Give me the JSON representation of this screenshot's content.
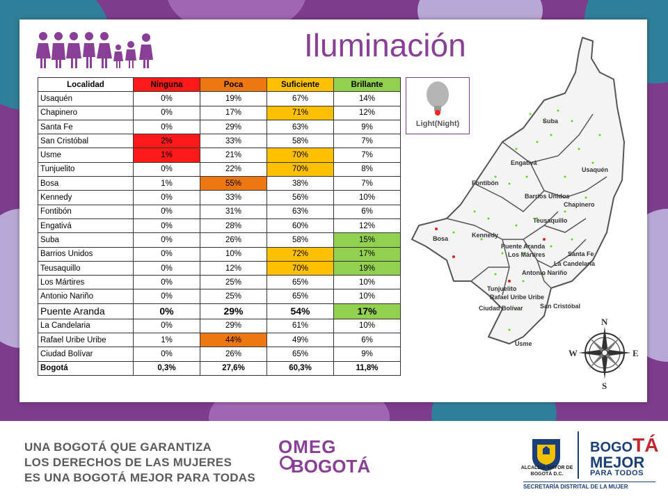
{
  "title": "Iluminación",
  "table": {
    "headers": [
      "Localidad",
      "Ninguna",
      "Poca",
      "Suficiente",
      "Brillante"
    ],
    "rows": [
      {
        "name": "Usaquén",
        "ninguna": "0%",
        "poca": "19%",
        "suficiente": "67%",
        "brillante": "14%"
      },
      {
        "name": "Chapinero",
        "ninguna": "0%",
        "poca": "17%",
        "suficiente": "71%",
        "brillante": "12%"
      },
      {
        "name": "Santa Fe",
        "ninguna": "0%",
        "poca": "29%",
        "suficiente": "63%",
        "brillante": "9%"
      },
      {
        "name": "San Cristóbal",
        "ninguna": "2%",
        "poca": "33%",
        "suficiente": "58%",
        "brillante": "7%"
      },
      {
        "name": "Usme",
        "ninguna": "1%",
        "poca": "21%",
        "suficiente": "70%",
        "brillante": "7%"
      },
      {
        "name": "Tunjuelito",
        "ninguna": "0%",
        "poca": "22%",
        "suficiente": "70%",
        "brillante": "8%"
      },
      {
        "name": "Bosa",
        "ninguna": "1%",
        "poca": "55%",
        "suficiente": "38%",
        "brillante": "7%"
      },
      {
        "name": "Kennedy",
        "ninguna": "0%",
        "poca": "33%",
        "suficiente": "56%",
        "brillante": "10%"
      },
      {
        "name": "Fontibón",
        "ninguna": "0%",
        "poca": "31%",
        "suficiente": "63%",
        "brillante": "6%"
      },
      {
        "name": "Engativá",
        "ninguna": "0%",
        "poca": "28%",
        "suficiente": "60%",
        "brillante": "12%"
      },
      {
        "name": "Suba",
        "ninguna": "0%",
        "poca": "26%",
        "suficiente": "58%",
        "brillante": "15%"
      },
      {
        "name": "Barrios Unidos",
        "ninguna": "0%",
        "poca": "10%",
        "suficiente": "72%",
        "brillante": "17%"
      },
      {
        "name": "Teusaquillo",
        "ninguna": "0%",
        "poca": "12%",
        "suficiente": "70%",
        "brillante": "19%"
      },
      {
        "name": "Los Mártires",
        "ninguna": "0%",
        "poca": "25%",
        "suficiente": "65%",
        "brillante": "10%"
      },
      {
        "name": "Antonio Nariño",
        "ninguna": "0%",
        "poca": "25%",
        "suficiente": "65%",
        "brillante": "10%"
      },
      {
        "name": "Puente Aranda",
        "ninguna": "0%",
        "poca": "29%",
        "suficiente": "54%",
        "brillante": "17%"
      },
      {
        "name": "La Candelaria",
        "ninguna": "0%",
        "poca": "29%",
        "suficiente": "61%",
        "brillante": "10%"
      },
      {
        "name": "Rafael Uribe Uribe",
        "ninguna": "1%",
        "poca": "44%",
        "suficiente": "49%",
        "brillante": "6%"
      },
      {
        "name": "Ciudad Bolívar",
        "ninguna": "0%",
        "poca": "26%",
        "suficiente": "65%",
        "brillante": "9%"
      },
      {
        "name": "Bogotá",
        "ninguna": "0,3%",
        "poca": "27,6%",
        "suficiente": "60,3%",
        "brillante": "11,8%"
      }
    ]
  },
  "legend": {
    "label": "Light(Night)",
    "icon": "lightbulb-icon"
  },
  "map": {
    "labels": [
      "Suba",
      "Engativá",
      "Usaquén",
      "Fontibón",
      "Barrios Unidos",
      "Chapinero",
      "Teusaquillo",
      "Bosa",
      "Kennedy",
      "Puente Aranda",
      "Santa Fe",
      "Los Mártires",
      "La Candelaria",
      "Antonio Nariño",
      "Tunjuelito",
      "Rafael Uribe Uribe",
      "San Cristóbal",
      "Ciudad Bolívar",
      "Usme"
    ],
    "dot_colors": {
      "light": "#55dd22",
      "dark": "#e02020"
    }
  },
  "compass": {
    "n": "N",
    "s": "S",
    "e": "E",
    "w": "W"
  },
  "footer": {
    "line1": "UNA BOGOTÁ QUE GARANTIZA",
    "line2": "LOS DERECHOS DE LAS MUJERES",
    "line3": "ES UNA BOGOTÁ MEJOR PARA TODAS",
    "omeg_top": "OMEG",
    "omeg_bottom": "BOGOTÁ",
    "alcaldia": "ALCALDÍA MAYOR DE BOGOTÁ D.C.",
    "bogota_prefix": "BOGO",
    "bogota_accent": "TÁ",
    "mejor": "MEJOR",
    "para_todos": "PARA TODOS",
    "secretaria": "SECRETARÍA DISTRITAL DE LA MUJER"
  },
  "colors": {
    "purple": "#8a3f97",
    "red": "#ff1a1a",
    "orange": "#ee7711",
    "yellow": "#ffc000",
    "green": "#92d050"
  }
}
